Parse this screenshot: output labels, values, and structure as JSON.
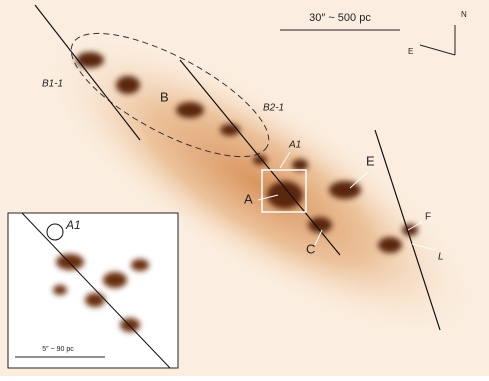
{
  "scale_bar": "30″ ~ 500 pc",
  "compass": {
    "north": "N",
    "east": "E"
  },
  "labels": [
    "B1-1",
    "B",
    "B2-1",
    "A1",
    "E",
    "A",
    "C",
    "F",
    "L"
  ],
  "inset": {
    "label": "A1",
    "scale_bar": "5″ ~ 90 pc"
  }
}
